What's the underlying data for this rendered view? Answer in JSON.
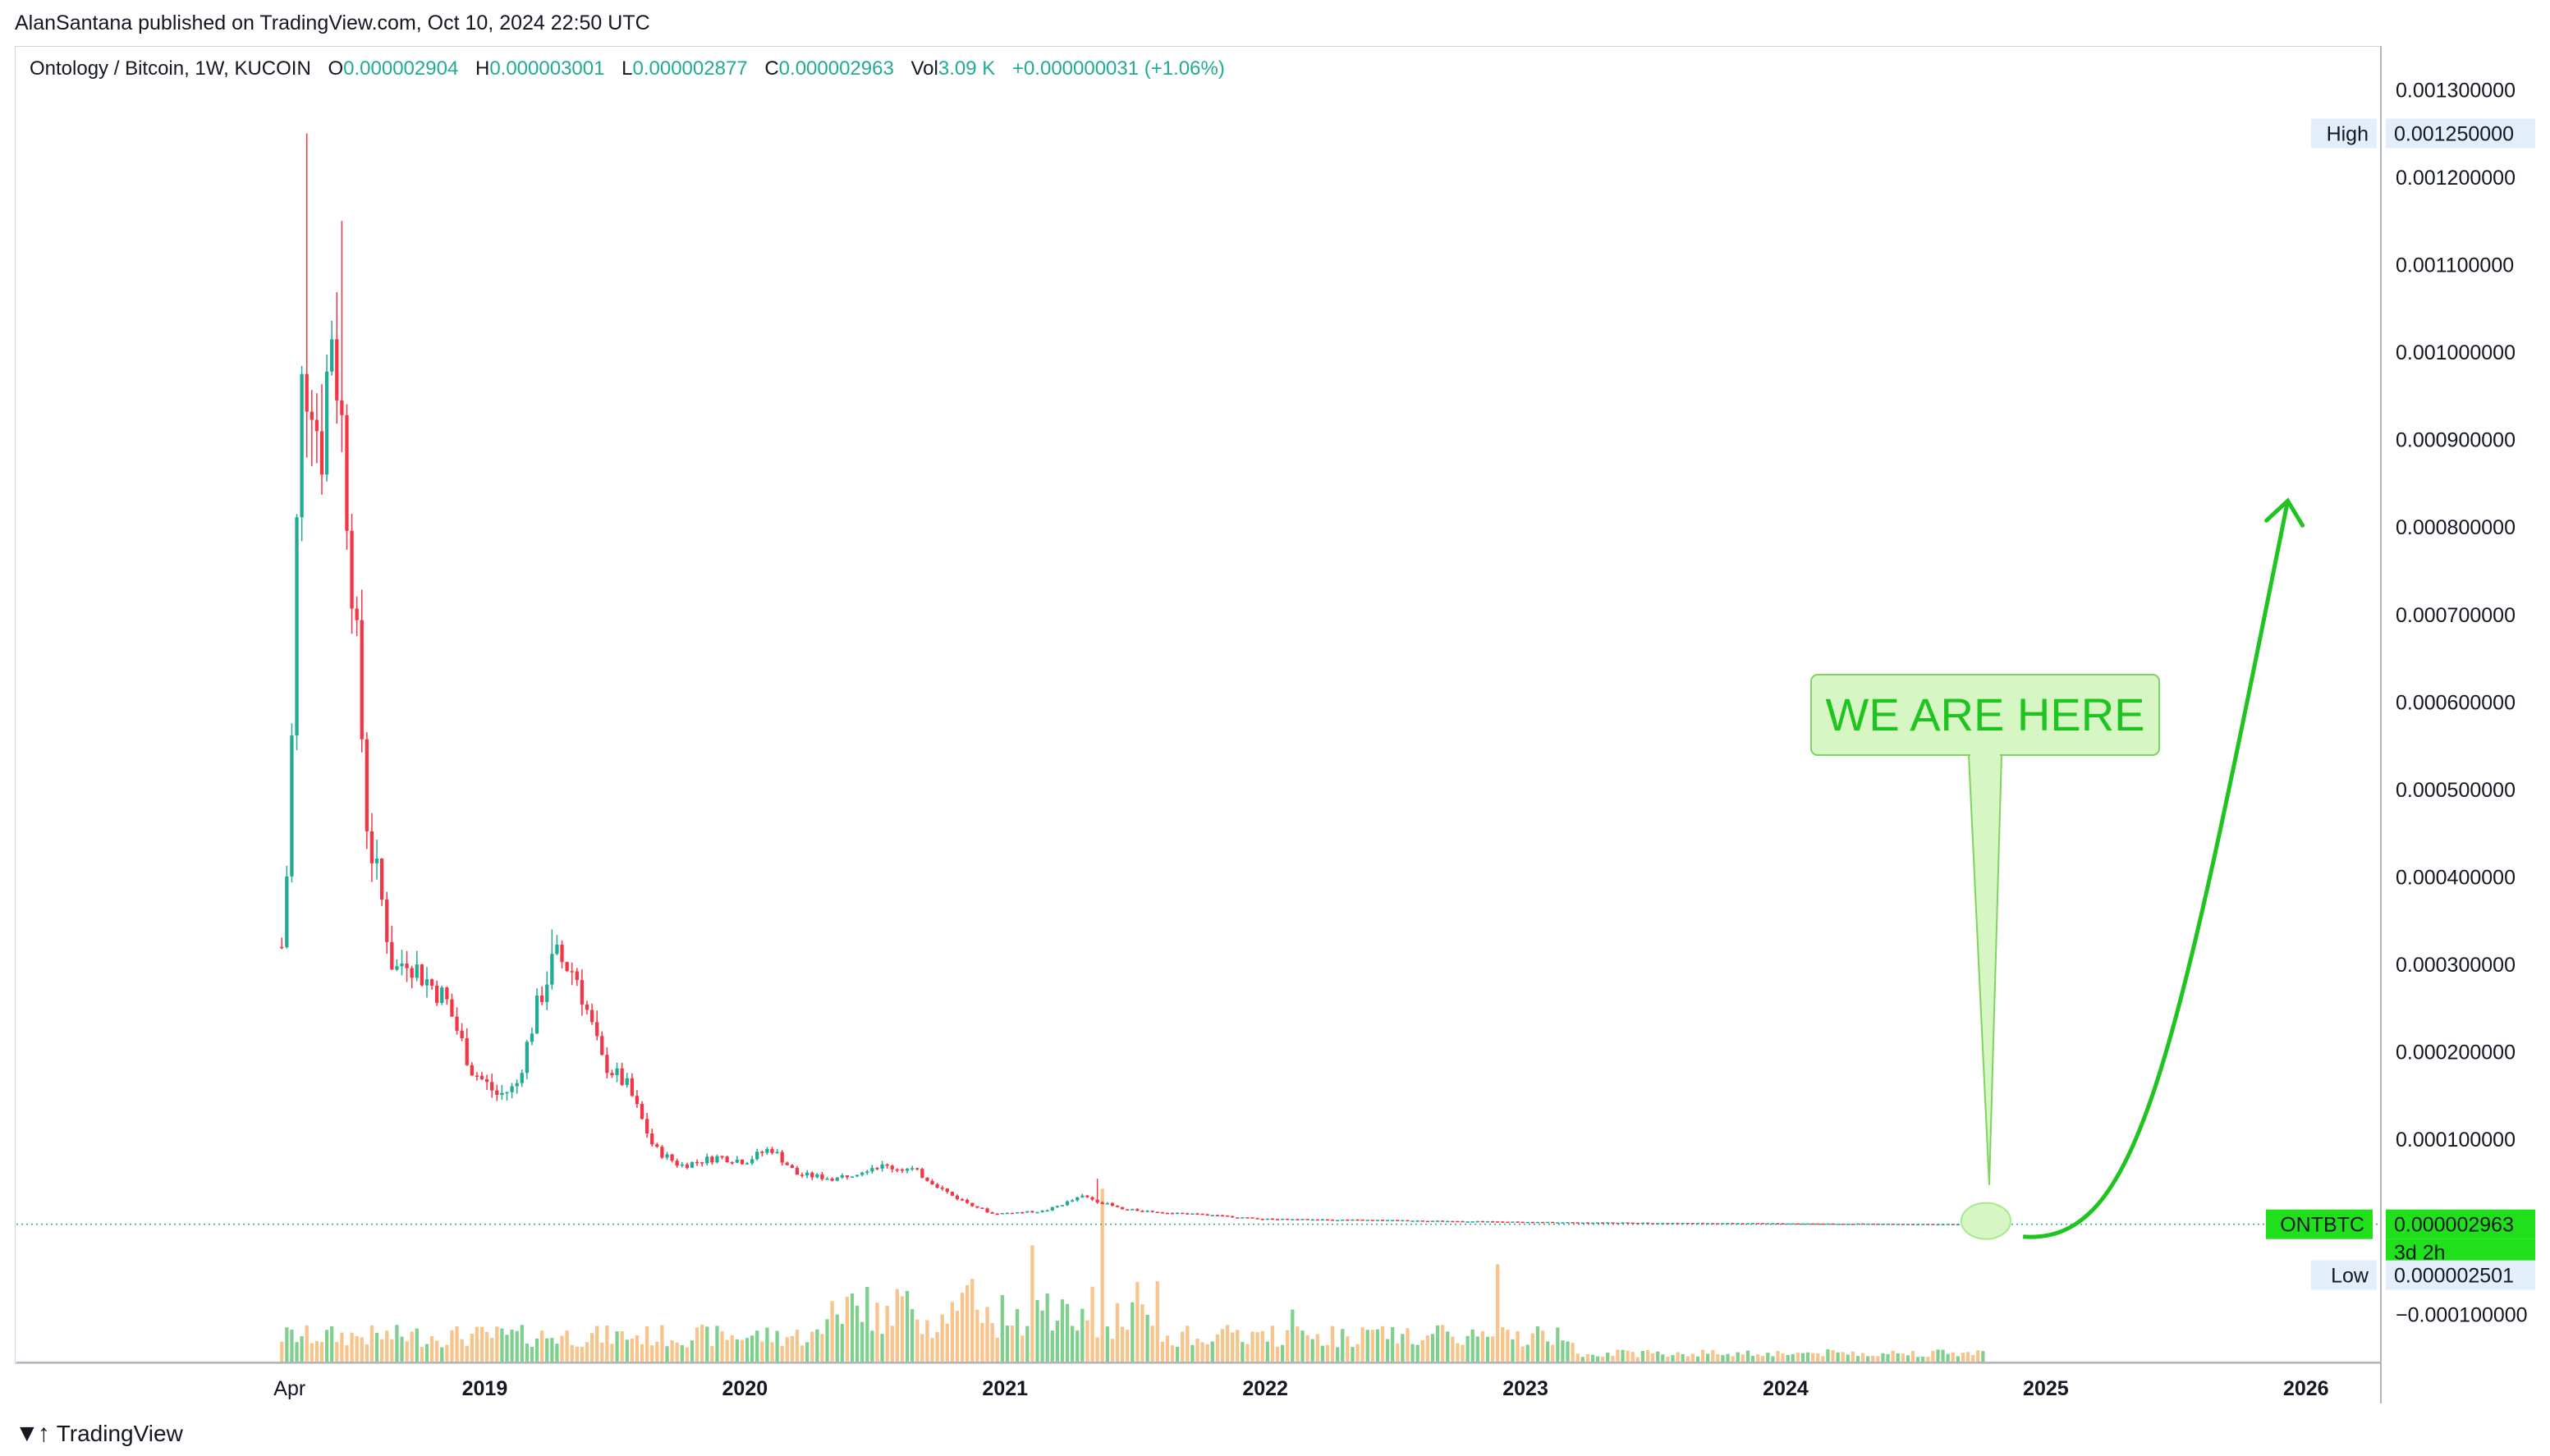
{
  "header": {
    "publisher_line": "AlanSantana published on TradingView.com, Oct 10, 2024 22:50 UTC"
  },
  "legend": {
    "symbol": "Ontology / Bitcoin, 1W, KUCOIN",
    "o_label": "O",
    "o_value": "0.000002904",
    "h_label": "H",
    "h_value": "0.000003001",
    "l_label": "L",
    "l_value": "0.000002877",
    "c_label": "C",
    "c_value": "0.000002963",
    "vol_label": "Vol",
    "vol_value": "3.09 K",
    "change": "+0.000000031 (+1.06%)"
  },
  "price_scale": {
    "high_label": "High",
    "high_value": "0.001250000",
    "low_label": "Low",
    "low_value": "0.000002501",
    "current_symbol": "ONTBTC",
    "current_value": "0.000002963",
    "countdown": "3d 2h"
  },
  "annotation": {
    "callout_text": "WE ARE HERE"
  },
  "footer": {
    "brand": "TradingView"
  },
  "colors": {
    "up": "#22ab94",
    "down": "#f23645",
    "vol_up": "#7fcf8f",
    "vol_down": "#f7c48b",
    "annotation": "#1fc421",
    "callout_fill": "#d6f7c4",
    "current_tag": "#1fe01b"
  },
  "chart_data": {
    "type": "candlestick",
    "timeframe": "1W",
    "x_labels": [
      "Apr",
      "2019",
      "2020",
      "2021",
      "2022",
      "2023",
      "2024",
      "2025",
      "2026"
    ],
    "x_label_times": [
      2018.25,
      2019.0,
      2020.0,
      2021.0,
      2022.0,
      2023.0,
      2024.0,
      2025.0,
      2026.0
    ],
    "y_ticks": [
      -0.0001,
      0.0001,
      0.0002,
      0.0003,
      0.0004,
      0.0005,
      0.0006,
      0.0007,
      0.0008,
      0.0009,
      0.001,
      0.0011,
      0.0012,
      0.0013
    ],
    "y_tick_labels": [
      "−0.000100000",
      "0.000100000",
      "0.000200000",
      "0.000300000",
      "0.000400000",
      "0.000500000",
      "0.000600000",
      "0.000700000",
      "0.000800000",
      "0.000900000",
      "0.001000000",
      "0.001100000",
      "0.001200000",
      "0.001300000"
    ],
    "ylim": [
      -0.000155,
      0.00135
    ],
    "xlim": [
      2017.2,
      2026.25
    ],
    "price_path": [
      [
        2018.22,
        0.00032
      ],
      [
        2018.25,
        0.00045
      ],
      [
        2018.29,
        0.00095
      ],
      [
        2018.33,
        0.00098
      ],
      [
        2018.37,
        0.00088
      ],
      [
        2018.41,
        0.00104
      ],
      [
        2018.45,
        0.00092
      ],
      [
        2018.5,
        0.0007
      ],
      [
        2018.55,
        0.00045
      ],
      [
        2018.6,
        0.00038
      ],
      [
        2018.65,
        0.00029
      ],
      [
        2018.7,
        0.00031
      ],
      [
        2018.75,
        0.00029
      ],
      [
        2018.85,
        0.00026
      ],
      [
        2018.95,
        0.00018
      ],
      [
        2019.05,
        0.00015
      ],
      [
        2019.12,
        0.00016
      ],
      [
        2019.2,
        0.00025
      ],
      [
        2019.27,
        0.00031
      ],
      [
        2019.35,
        0.00029
      ],
      [
        2019.45,
        0.00019
      ],
      [
        2019.55,
        0.00016
      ],
      [
        2019.65,
        9e-05
      ],
      [
        2019.75,
        7e-05
      ],
      [
        2019.9,
        8e-05
      ],
      [
        2020.0,
        7.5e-05
      ],
      [
        2020.1,
        9e-05
      ],
      [
        2020.2,
        6e-05
      ],
      [
        2020.35,
        5.5e-05
      ],
      [
        2020.5,
        7e-05
      ],
      [
        2020.65,
        6.5e-05
      ],
      [
        2020.8,
        3.5e-05
      ],
      [
        2020.95,
        1.5e-05
      ],
      [
        2021.15,
        1.8e-05
      ],
      [
        2021.3,
        3.5e-05
      ],
      [
        2021.45,
        2e-05
      ],
      [
        2021.7,
        1.5e-05
      ],
      [
        2022.0,
        9e-06
      ],
      [
        2022.5,
        7.5e-06
      ],
      [
        2023.0,
        5.5e-06
      ],
      [
        2023.5,
        4.5e-06
      ],
      [
        2024.0,
        4e-06
      ],
      [
        2024.5,
        3.3e-06
      ],
      [
        2024.77,
        2.963e-06
      ]
    ],
    "wick_highs": [
      [
        2018.31,
        0.00125
      ],
      [
        2018.46,
        0.00115
      ],
      [
        2019.25,
        0.00034
      ],
      [
        2021.35,
        5.5e-05
      ]
    ],
    "volume_spikes": [
      [
        2021.37,
        0.92
      ],
      [
        2021.1,
        0.62
      ],
      [
        2022.9,
        0.52
      ],
      [
        2020.55,
        0.3
      ],
      [
        2022.1,
        0.28
      ]
    ],
    "projection_arrow": {
      "from": [
        2024.9,
        0.0
      ],
      "to": [
        2025.93,
        0.00083
      ]
    }
  }
}
